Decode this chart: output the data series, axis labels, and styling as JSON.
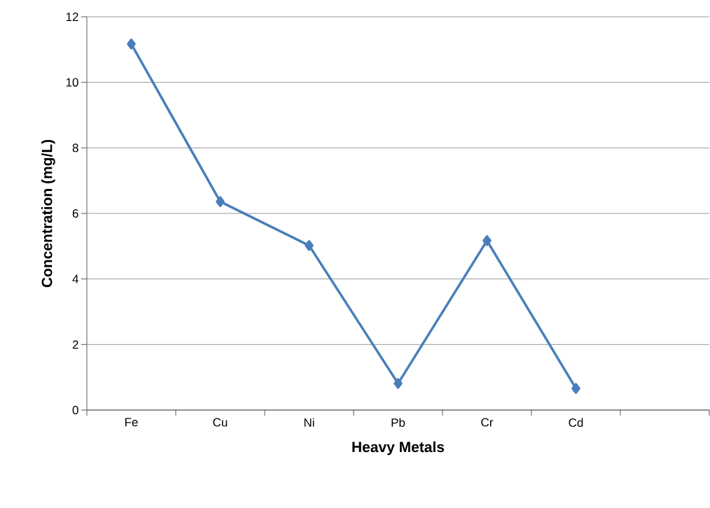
{
  "chart_data": {
    "type": "line",
    "xlabel": "Heavy  Metals",
    "ylabel": "Concentration (mg/L)",
    "categories": [
      "Fe",
      "Cu",
      "Ni",
      "Pb",
      "Cr",
      "Cd",
      null
    ],
    "values": [
      11.17,
      6.36,
      5.02,
      0.81,
      5.17,
      0.66,
      null
    ],
    "color": "#4a7ebb",
    "marker": "diamond",
    "line_style": "solid",
    "ylim": [
      0,
      12
    ],
    "yticks": [
      0,
      2,
      4,
      6,
      8,
      10,
      12
    ],
    "grid": "y"
  }
}
